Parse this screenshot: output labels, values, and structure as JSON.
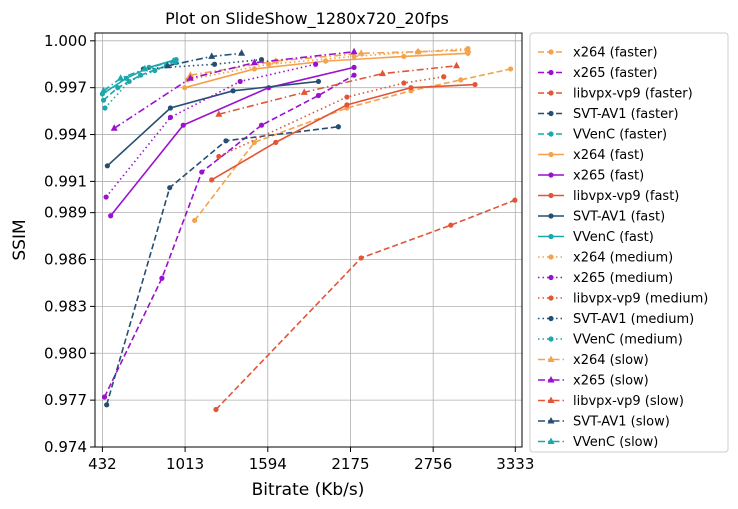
{
  "chart_data": {
    "type": "line",
    "title": "Plot on SlideShow_1280x720_20fps",
    "xlabel": "Bitrate (Kb/s)",
    "ylabel": "SSIM",
    "x_ticks": [
      432,
      1013,
      1594,
      2175,
      2756,
      3333
    ],
    "y_ticks": [
      0.974,
      0.977,
      0.98,
      0.983,
      0.986,
      0.989,
      0.991,
      0.994,
      0.997,
      1.0
    ],
    "y_tick_labels": [
      "0.974",
      "0.977",
      "0.980",
      "0.983",
      "0.986",
      "0.989",
      "0.991",
      "0.994",
      "0.997",
      "1.000"
    ],
    "xlim": [
      380,
      3380
    ],
    "ylim": [
      0.974,
      1.0005
    ],
    "grid": true,
    "legend_position": "outside-right",
    "series": [
      {
        "name": "x264 (faster)",
        "color": "#f4a24c",
        "dash": "dashed",
        "marker": "circle",
        "x": [
          1080,
          1500,
          2150,
          2600,
          2950,
          3300
        ],
        "y": [
          0.9885,
          0.9935,
          0.9957,
          0.9968,
          0.9975,
          0.9982
        ]
      },
      {
        "name": "x265 (faster)",
        "color": "#9b0fd0",
        "dash": "dashed",
        "marker": "circle",
        "x": [
          447,
          850,
          1130,
          1550,
          1950,
          2200
        ],
        "y": [
          0.9772,
          0.9848,
          0.9916,
          0.9946,
          0.9965,
          0.9978
        ]
      },
      {
        "name": "libvpx-vp9 (faster)",
        "color": "#e25536",
        "dash": "dashed",
        "marker": "circle",
        "x": [
          1230,
          2250,
          2880,
          3330
        ],
        "y": [
          0.9764,
          0.9861,
          0.9882,
          0.9898
        ]
      },
      {
        "name": "SVT-AV1 (faster)",
        "color": "#254f72",
        "dash": "dashed",
        "marker": "circle",
        "x": [
          462,
          905,
          1300,
          2090
        ],
        "y": [
          0.9767,
          0.9906,
          0.9936,
          0.9945
        ]
      },
      {
        "name": "VVenC (faster)",
        "color": "#1ba7ac",
        "dash": "dashed",
        "marker": "circle",
        "x": [
          440,
          540,
          700,
          880
        ],
        "y": [
          0.9962,
          0.997,
          0.9978,
          0.9984
        ]
      },
      {
        "name": "x264 (fast)",
        "color": "#f4a24c",
        "dash": "solid",
        "marker": "circle",
        "x": [
          1010,
          1500,
          2000,
          2550,
          3000
        ],
        "y": [
          0.997,
          0.9982,
          0.9987,
          0.999,
          0.9992
        ]
      },
      {
        "name": "x265 (fast)",
        "color": "#9b0fd0",
        "dash": "solid",
        "marker": "circle",
        "x": [
          490,
          1000,
          1600,
          2200
        ],
        "y": [
          0.9888,
          0.9946,
          0.997,
          0.9983
        ]
      },
      {
        "name": "libvpx-vp9 (fast)",
        "color": "#e25536",
        "dash": "solid",
        "marker": "circle",
        "x": [
          1200,
          1650,
          2150,
          2600,
          3050
        ],
        "y": [
          0.9911,
          0.9935,
          0.9959,
          0.997,
          0.9972
        ]
      },
      {
        "name": "SVT-AV1 (fast)",
        "color": "#254f72",
        "dash": "solid",
        "marker": "circle",
        "x": [
          467,
          910,
          1350,
          1950
        ],
        "y": [
          0.992,
          0.9957,
          0.9968,
          0.9974
        ]
      },
      {
        "name": "VVenC (fast)",
        "color": "#1ba7ac",
        "dash": "solid",
        "marker": "circle",
        "x": [
          432,
          600,
          760,
          950
        ],
        "y": [
          0.9966,
          0.9976,
          0.9983,
          0.9988
        ]
      },
      {
        "name": "x264 (medium)",
        "color": "#f4a24c",
        "dash": "dotted",
        "marker": "circle",
        "x": [
          1030,
          1600,
          2200,
          2650,
          3000
        ],
        "y": [
          0.9975,
          0.9985,
          0.999,
          0.9993,
          0.9995
        ]
      },
      {
        "name": "x265 (medium)",
        "color": "#9b0fd0",
        "dash": "dotted",
        "marker": "circle",
        "x": [
          458,
          910,
          1400,
          1930
        ],
        "y": [
          0.99,
          0.9951,
          0.9974,
          0.9985
        ]
      },
      {
        "name": "libvpx-vp9 (medium)",
        "color": "#e25536",
        "dash": "dotted",
        "marker": "circle",
        "x": [
          1250,
          2150,
          2550,
          2830
        ],
        "y": [
          0.9926,
          0.9964,
          0.9973,
          0.9977
        ]
      },
      {
        "name": "SVT-AV1 (medium)",
        "color": "#254f72",
        "dash": "dotted",
        "marker": "circle",
        "x": [
          720,
          1220,
          1550
        ],
        "y": [
          0.9982,
          0.9985,
          0.9988
        ]
      },
      {
        "name": "VVenC (medium)",
        "color": "#1ba7ac",
        "dash": "dotted",
        "marker": "circle",
        "x": [
          450,
          620,
          800,
          950
        ],
        "y": [
          0.9957,
          0.9974,
          0.9981,
          0.9986
        ]
      },
      {
        "name": "x264 (slow)",
        "color": "#f4a24c",
        "dash": "dashdot",
        "marker": "triangle",
        "x": [
          1050,
          1650,
          2250,
          2650,
          3000
        ],
        "y": [
          0.9978,
          0.9987,
          0.9992,
          0.9993,
          0.9994
        ]
      },
      {
        "name": "x265 (slow)",
        "color": "#9b0fd0",
        "dash": "dashdot",
        "marker": "triangle",
        "x": [
          515,
          1050,
          1500,
          2200
        ],
        "y": [
          0.9944,
          0.9976,
          0.9986,
          0.9993
        ]
      },
      {
        "name": "libvpx-vp9 (slow)",
        "color": "#e25536",
        "dash": "dashdot",
        "marker": "triangle",
        "x": [
          1250,
          1850,
          2400,
          2920
        ],
        "y": [
          0.9953,
          0.9967,
          0.9979,
          0.9984
        ]
      },
      {
        "name": "SVT-AV1 (slow)",
        "color": "#254f72",
        "dash": "dashdot",
        "marker": "triangle",
        "x": [
          890,
          1200,
          1410
        ],
        "y": [
          0.9984,
          0.999,
          0.9992
        ]
      },
      {
        "name": "VVenC (slow)",
        "color": "#1ba7ac",
        "dash": "dashdot",
        "marker": "triangle",
        "x": [
          440,
          560,
          730,
          930
        ],
        "y": [
          0.9968,
          0.9976,
          0.9982,
          0.9987
        ]
      }
    ]
  }
}
